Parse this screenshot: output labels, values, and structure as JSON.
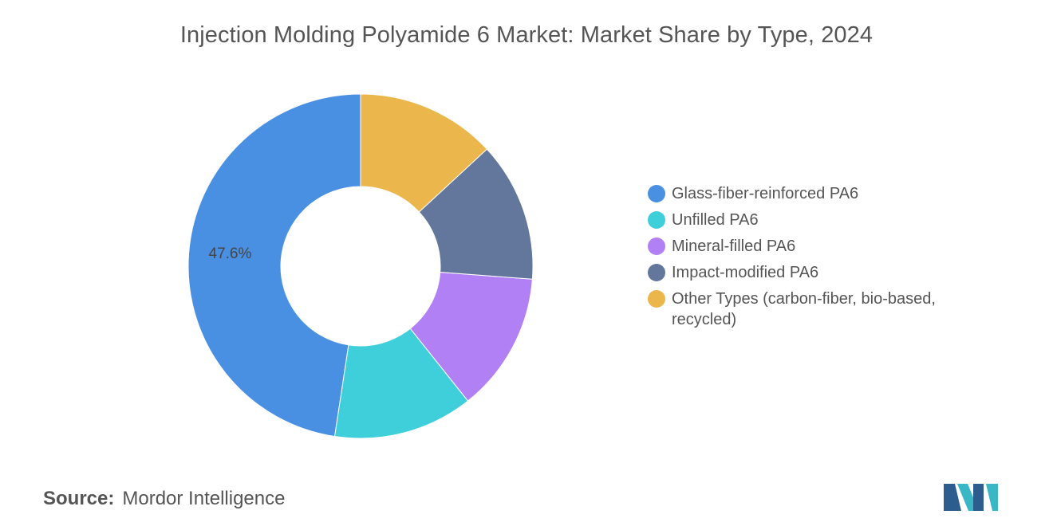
{
  "chart_data": {
    "type": "pie",
    "title": "Injection Molding Polyamide 6 Market: Market Share by Type, 2024",
    "categories": [
      "Glass-fiber-reinforced PA6",
      "Unfilled PA6",
      "Mineral-filled PA6",
      "Impact-modified PA6",
      "Other Types (carbon-fiber, bio-based, recycled)"
    ],
    "values": [
      47.6,
      13.1,
      13.1,
      13.1,
      13.1
    ],
    "data_labels": [
      "47.6%",
      "",
      "",
      "",
      ""
    ],
    "colors": [
      "#4a90e2",
      "#3ecfdb",
      "#b180f5",
      "#62779b",
      "#ebb64b"
    ],
    "legend": "right",
    "donut": true
  },
  "source": {
    "label": "Source:",
    "value": "Mordor Intelligence"
  },
  "logo": {
    "icon": "mordor-intelligence-logo-icon",
    "colors": [
      "#2d5d8f",
      "#3ab7c4"
    ]
  }
}
